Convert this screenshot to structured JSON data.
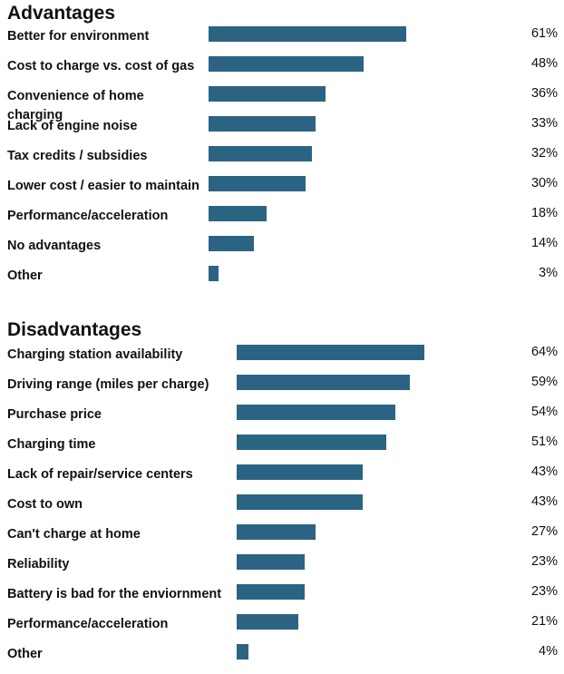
{
  "chart_data": [
    {
      "type": "bar",
      "orientation": "horizontal",
      "title": "Advantages",
      "unit": "%",
      "categories": [
        "Better for environment",
        "Cost to charge vs. cost of gas",
        "Convenience of home charging",
        "Lack of engine noise",
        "Tax credits / subsidies",
        "Lower cost / easier to maintain",
        "Performance/acceleration",
        "No advantages",
        "Other"
      ],
      "values": [
        61,
        48,
        36,
        33,
        32,
        30,
        18,
        14,
        3
      ],
      "value_labels": [
        "61%",
        "48%",
        "36%",
        "33%",
        "32%",
        "30%",
        "18%",
        "14%",
        "3%"
      ],
      "xlim": [
        0,
        100
      ],
      "bar_color": "#2b6483"
    },
    {
      "type": "bar",
      "orientation": "horizontal",
      "title": "Disadvantages",
      "unit": "%",
      "categories": [
        "Charging station availability",
        "Driving range (miles per charge)",
        "Purchase price",
        "Charging time",
        "Lack of repair/service centers",
        "Cost to own",
        "Can't charge at home",
        "Reliability",
        "Battery is bad for the enviornment",
        "Performance/acceleration",
        "Other"
      ],
      "values": [
        64,
        59,
        54,
        51,
        43,
        43,
        27,
        23,
        23,
        21,
        4
      ],
      "value_labels": [
        "64%",
        "59%",
        "54%",
        "51%",
        "43%",
        "43%",
        "27%",
        "23%",
        "23%",
        "21%",
        "4%"
      ],
      "xlim": [
        0,
        100
      ],
      "bar_color": "#2b6483"
    }
  ]
}
